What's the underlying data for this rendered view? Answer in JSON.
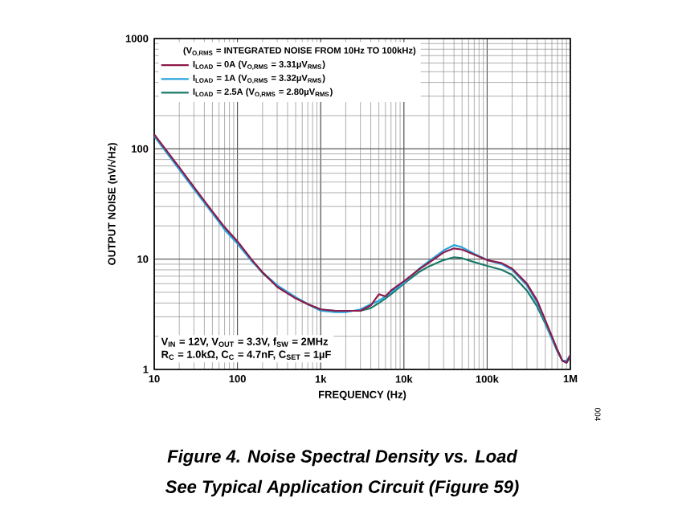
{
  "chart_data": {
    "type": "line",
    "title": "Figure 4. Noise Spectral Density vs. Load",
    "subtitle": "See Typical Application Circuit (Figure 59)",
    "xlabel": "FREQUENCY (Hz)",
    "ylabel": "OUTPUT NOISE (nV/√Hz)",
    "legend_title": "(V$_{O,RMS}$ = INTEGRATED NOISE FROM 10Hz TO 100kHz)",
    "annotations": [
      "V$_{IN}$ = 12V, V$_{OUT}$ = 3.3V, f$_{SW}$ = 2MHz",
      "R$_{C}$ = 1.0kΩ, C$_{C}$ = 4.7nF, C$_{SET}$ = 1µF",
      "004"
    ],
    "x": [
      10,
      20,
      30,
      50,
      70,
      100,
      150,
      200,
      300,
      500,
      700,
      1000,
      1500,
      2000,
      3000,
      4000,
      5000,
      6000,
      7000,
      10000,
      15000,
      20000,
      30000,
      40000,
      50000,
      70000,
      100000,
      150000,
      200000,
      300000,
      400000,
      500000,
      600000,
      700000,
      800000,
      900000,
      1000000
    ],
    "series": [
      {
        "name": "I$_{LOAD}$ = 0A (V$_{O,RMS}$ = 3.31µV$_{RMS}$)",
        "color": "#8b1a4a",
        "values": [
          135,
          68,
          45,
          27,
          19.5,
          14.5,
          9.8,
          7.6,
          5.6,
          4.4,
          3.9,
          3.5,
          3.4,
          3.4,
          3.4,
          3.8,
          4.8,
          4.6,
          5.2,
          6.3,
          8.0,
          9.3,
          11.5,
          12.5,
          12.2,
          11,
          9.8,
          9.2,
          8.2,
          6,
          4.2,
          2.8,
          2.0,
          1.5,
          1.2,
          1.15,
          1.35
        ]
      },
      {
        "name": "I$_{LOAD}$ = 1A (V$_{O,RMS}$ = 3.32µV$_{RMS}$)",
        "color": "#29a3dc",
        "values": [
          130,
          65,
          43,
          26,
          18.5,
          13.8,
          9.5,
          7.6,
          5.8,
          4.5,
          3.9,
          3.4,
          3.3,
          3.3,
          3.5,
          3.9,
          4.2,
          4.6,
          5.0,
          6.1,
          8.1,
          9.6,
          12,
          13.4,
          12.8,
          11.2,
          9.8,
          9.0,
          8.0,
          5.8,
          4.0,
          2.7,
          1.9,
          1.5,
          1.2,
          1.2,
          1.35
        ]
      },
      {
        "name": "I$_{LOAD}$ = 2.5A (V$_{O,RMS}$ = 2.80µV$_{RMS}$)",
        "color": "#1a7a6a",
        "values": [
          132,
          66,
          44,
          26.5,
          19,
          14,
          9.6,
          7.5,
          5.7,
          4.5,
          3.9,
          3.5,
          3.4,
          3.4,
          3.4,
          3.6,
          4.0,
          4.4,
          4.8,
          6.0,
          7.6,
          8.6,
          9.8,
          10.4,
          10.2,
          9.4,
          8.7,
          8.0,
          7.2,
          5.2,
          3.7,
          2.6,
          1.9,
          1.45,
          1.2,
          1.15,
          1.3
        ]
      }
    ],
    "xlim": [
      10,
      1000000
    ],
    "xticks": [
      10,
      100,
      {
        "value": 1000,
        "label": "1k"
      },
      {
        "value": 10000,
        "label": "10k"
      },
      {
        "value": 100000,
        "label": "100k"
      },
      {
        "value": 1000000,
        "label": "1M"
      }
    ],
    "ylim": [
      1,
      1000
    ],
    "yticks": [
      1,
      10,
      100,
      1000
    ],
    "log": "xy",
    "grid": true,
    "legend": "top left",
    "line_style": "solid",
    "marker": "none"
  }
}
